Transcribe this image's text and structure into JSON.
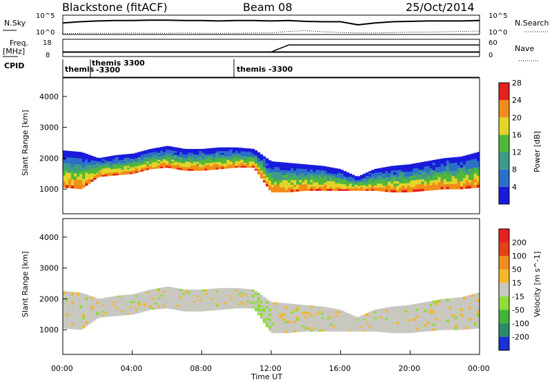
{
  "header": {
    "station": "Blackstone (fitACF)",
    "beam": "Beam 08",
    "date": "25/Oct/2014"
  },
  "panel_labels": {
    "nsky": "N.Sky",
    "nsky_tick_top": "10^5",
    "nsky_tick_bottom": "10^0",
    "nsearch": "N.Search",
    "nsearch_tick_top": "10^5",
    "nsearch_tick_bottom": "10^0",
    "freq": "Freq.",
    "freq_unit": "[MHz]",
    "freq_tick_top": "18",
    "freq_tick_bottom": "8",
    "nave": "Nave",
    "nave_tick_top": "60",
    "nave_tick_bottom": "0",
    "cpid": "CPID"
  },
  "cpid_segments": [
    {
      "label": "themis",
      "label2": ""
    },
    {
      "label": "themis 3300",
      "label2": "-3300"
    },
    {
      "label": "themis -3300",
      "label2": ""
    }
  ],
  "chart_data": [
    {
      "type": "heatmap",
      "title": "",
      "ylabel": "Slant Range [km]",
      "xlabel": "",
      "ylim": [
        200,
        4600
      ],
      "yticks": [
        "1000",
        "2000",
        "3000",
        "4000"
      ],
      "colorbar_label": "Power [dB]",
      "colorbar_ticks": [
        "4",
        "8",
        "12",
        "16",
        "20",
        "24",
        "28"
      ],
      "colors": [
        "#1a1adb",
        "#2c6fc9",
        "#3f9a8a",
        "#4fb83c",
        "#e3d42a",
        "#f28c1a",
        "#e61f1f"
      ],
      "band_upper_km": [
        2250,
        2200,
        2000,
        2100,
        2150,
        2300,
        2400,
        2300,
        2300,
        2350,
        2350,
        2300,
        1900,
        1850,
        1800,
        1750,
        1650,
        1400,
        1650,
        1750,
        1800,
        1900,
        2000,
        2050,
        2200
      ],
      "band_lower_km": [
        1050,
        1000,
        1400,
        1450,
        1500,
        1650,
        1700,
        1600,
        1600,
        1650,
        1700,
        1700,
        900,
        900,
        950,
        950,
        950,
        950,
        950,
        900,
        900,
        950,
        1000,
        1000,
        1050
      ]
    },
    {
      "type": "heatmap",
      "title": "",
      "ylabel": "Slant Range [km]",
      "xlabel": "Time UT",
      "ylim": [
        200,
        4600
      ],
      "yticks": [
        "1000",
        "2000",
        "3000",
        "4000"
      ],
      "xticks": [
        "00:00",
        "04:00",
        "08:00",
        "12:00",
        "16:00",
        "20:00",
        "00:00"
      ],
      "colorbar_label": "Velocity [m s^-1]",
      "colorbar_ticks": [
        "200",
        "100",
        "50",
        "15",
        "-15",
        "-50",
        "-100",
        "-200"
      ],
      "colors": [
        "#1a2fd6",
        "#2c8a6a",
        "#43b33a",
        "#8fdc3a",
        "#c8c8c0",
        "#f2b82a",
        "#f28c1a",
        "#e6401a",
        "#e61f1f"
      ]
    },
    {
      "type": "line",
      "title": "",
      "series": [
        {
          "name": "N.Sky",
          "values": [
            3.0,
            3.3,
            3.5,
            3.6,
            3.6,
            3.7,
            3.7,
            3.6,
            3.6,
            3.5,
            3.6,
            3.6,
            3.5,
            3.6,
            3.4,
            3.3,
            3.3,
            2.5,
            3.0,
            3.3,
            3.4,
            3.5,
            3.5,
            3.5,
            3.6
          ]
        },
        {
          "name": "N.Search",
          "values": [
            0.2,
            0.3,
            0.3,
            0.3,
            0.4,
            0.3,
            0.3,
            0.4,
            0.3,
            0.3,
            0.3,
            0.4,
            0.4,
            0.8,
            1.0,
            0.7,
            0.5,
            0.4,
            0.4,
            0.5,
            0.6,
            0.6,
            0.7,
            0.8,
            0.9
          ]
        }
      ]
    },
    {
      "type": "line",
      "title": "",
      "series": [
        {
          "name": "Freq.",
          "values": [
            10.6,
            10.6,
            10.6,
            10.6,
            10.6,
            10.6,
            10.6,
            10.6,
            10.6,
            10.6,
            10.6,
            10.6,
            10.6,
            10.6,
            10.6,
            10.6,
            10.6,
            10.6,
            10.6,
            10.6,
            10.6,
            10.6,
            10.6,
            10.6,
            10.6
          ]
        },
        {
          "name": "Nave",
          "values": [
            16,
            16,
            16,
            16,
            16,
            16,
            16,
            16,
            16,
            16,
            16,
            16,
            16,
            16,
            16,
            16,
            16,
            16,
            16,
            16,
            16,
            16,
            16,
            16,
            16
          ]
        }
      ]
    }
  ],
  "colors": {
    "power_low": "#1a1adb",
    "power_high": "#e61f1f",
    "velocity_ground": "#c8c8c0"
  }
}
